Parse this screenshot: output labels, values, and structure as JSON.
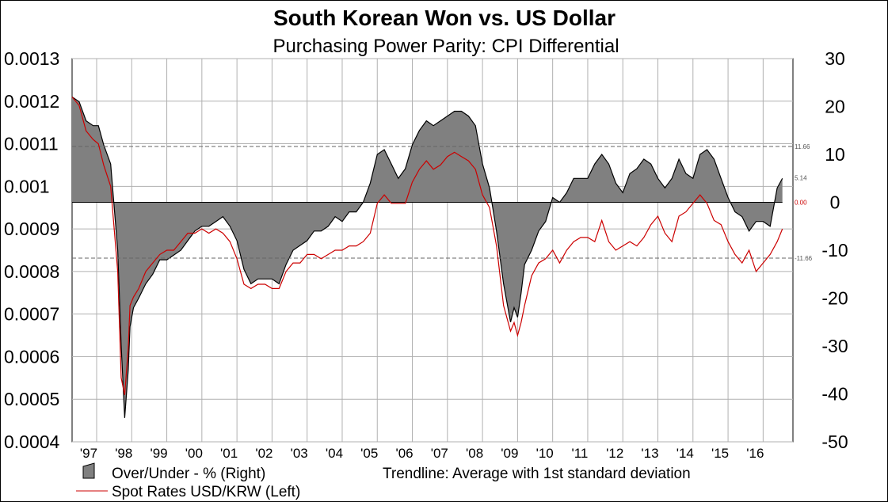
{
  "chart_data": {
    "type": "area",
    "title": "South Korean Won vs. US Dollar",
    "subtitle": "Purchasing Power Parity: CPI Differential",
    "left_axis": {
      "ticks": [
        "0.0013",
        "0.0012",
        "0.0011",
        "0.001",
        "0.0009",
        "0.0008",
        "0.0007",
        "0.0006",
        "0.0005",
        "0.0004"
      ],
      "ylim": [
        0.0004,
        0.0013
      ]
    },
    "right_axis": {
      "ticks": [
        "30",
        "20",
        "10",
        "0",
        "-10",
        "-20",
        "-30",
        "-40",
        "-50"
      ],
      "ylim": [
        -50,
        30
      ]
    },
    "x_ticks": [
      "'97",
      "'98",
      "'99",
      "'00",
      "'01",
      "'02",
      "'03",
      "'04",
      "'05",
      "'06",
      "'07",
      "'08",
      "'09",
      "'10",
      "'11",
      "'12",
      "'13",
      "'14",
      "'15",
      "'16"
    ],
    "x_tick_positions": [
      1997,
      1998,
      1999,
      2000,
      2001,
      2002,
      2003,
      2004,
      2005,
      2006,
      2007,
      2008,
      2009,
      2010,
      2011,
      2012,
      2013,
      2014,
      2015,
      2016
    ],
    "xlim": [
      1996.3,
      2016.85
    ],
    "reference_lines": [
      {
        "label": "11.66",
        "value": 11.66,
        "axis": "right"
      },
      {
        "label": "-11.66",
        "value": -11.66,
        "axis": "right"
      }
    ],
    "end_labels": [
      {
        "label": "5.14",
        "value": 5.14,
        "axis": "right",
        "color": "#555555"
      },
      {
        "label": "0.00",
        "value": 0.0,
        "axis": "right",
        "color": "#cc0000"
      }
    ],
    "series": [
      {
        "name": "Over/Under - %  (Right)",
        "axis": "right",
        "kind": "area",
        "color": "#808080",
        "x": [
          1996.3,
          1996.5,
          1996.7,
          1996.9,
          1997.05,
          1997.2,
          1997.4,
          1997.6,
          1997.7,
          1997.8,
          1997.9,
          1997.95,
          1998.05,
          1998.2,
          1998.4,
          1998.6,
          1998.8,
          1999.0,
          1999.2,
          1999.4,
          1999.6,
          1999.8,
          2000.0,
          2000.2,
          2000.4,
          2000.6,
          2000.8,
          2001.0,
          2001.2,
          2001.4,
          2001.6,
          2001.8,
          2002.0,
          2002.2,
          2002.4,
          2002.6,
          2002.8,
          2003.0,
          2003.2,
          2003.4,
          2003.6,
          2003.8,
          2004.0,
          2004.2,
          2004.4,
          2004.6,
          2004.8,
          2005.0,
          2005.2,
          2005.4,
          2005.6,
          2005.8,
          2006.0,
          2006.2,
          2006.4,
          2006.6,
          2006.8,
          2007.0,
          2007.2,
          2007.4,
          2007.6,
          2007.8,
          2008.0,
          2008.2,
          2008.4,
          2008.6,
          2008.8,
          2008.9,
          2009.0,
          2009.1,
          2009.2,
          2009.4,
          2009.6,
          2009.8,
          2010.0,
          2010.2,
          2010.4,
          2010.6,
          2010.8,
          2011.0,
          2011.2,
          2011.4,
          2011.6,
          2011.8,
          2012.0,
          2012.2,
          2012.4,
          2012.6,
          2012.8,
          2013.0,
          2013.2,
          2013.4,
          2013.6,
          2013.8,
          2014.0,
          2014.2,
          2014.4,
          2014.6,
          2014.8,
          2015.0,
          2015.2,
          2015.4,
          2015.6,
          2015.8,
          2016.0,
          2016.2,
          2016.4,
          2016.55
        ],
        "values": [
          22,
          21,
          17,
          16,
          16,
          12,
          8,
          -10,
          -30,
          -45,
          -35,
          -26,
          -22,
          -20,
          -17,
          -15,
          -12,
          -12,
          -11,
          -10,
          -8,
          -6,
          -5,
          -5,
          -4,
          -3,
          -5,
          -8,
          -14,
          -17,
          -16,
          -16,
          -16,
          -17,
          -13,
          -10,
          -9,
          -8,
          -6,
          -6,
          -5,
          -3,
          -4,
          -2,
          -2,
          0,
          4,
          10,
          11,
          8,
          5,
          7,
          12,
          15,
          17,
          16,
          17,
          18,
          19,
          19,
          18,
          16,
          8,
          3,
          -6,
          -17,
          -25,
          -22,
          -24,
          -19,
          -13,
          -10,
          -6,
          -4,
          1,
          0,
          2,
          5,
          5,
          5,
          8,
          10,
          8,
          4,
          2,
          6,
          7,
          9,
          8,
          5,
          3,
          5,
          9,
          6,
          5,
          10,
          11,
          9,
          5,
          1,
          -2,
          -3,
          -6,
          -4,
          -4,
          -5,
          3,
          5
        ]
      },
      {
        "name": "Spot Rates USD/KRW  (Left)",
        "axis": "left",
        "kind": "line",
        "color": "#cc0000",
        "x": [
          1996.3,
          1996.5,
          1996.7,
          1996.9,
          1997.05,
          1997.2,
          1997.4,
          1997.6,
          1997.7,
          1997.8,
          1997.9,
          1997.95,
          1998.05,
          1998.2,
          1998.4,
          1998.6,
          1998.8,
          1999.0,
          1999.2,
          1999.4,
          1999.6,
          1999.8,
          2000.0,
          2000.2,
          2000.4,
          2000.6,
          2000.8,
          2001.0,
          2001.2,
          2001.4,
          2001.6,
          2001.8,
          2002.0,
          2002.2,
          2002.4,
          2002.6,
          2002.8,
          2003.0,
          2003.2,
          2003.4,
          2003.6,
          2003.8,
          2004.0,
          2004.2,
          2004.4,
          2004.6,
          2004.8,
          2005.0,
          2005.2,
          2005.4,
          2005.6,
          2005.8,
          2006.0,
          2006.2,
          2006.4,
          2006.6,
          2006.8,
          2007.0,
          2007.2,
          2007.4,
          2007.6,
          2007.8,
          2008.0,
          2008.2,
          2008.4,
          2008.6,
          2008.8,
          2008.9,
          2009.0,
          2009.1,
          2009.2,
          2009.4,
          2009.6,
          2009.8,
          2010.0,
          2010.2,
          2010.4,
          2010.6,
          2010.8,
          2011.0,
          2011.2,
          2011.4,
          2011.6,
          2011.8,
          2012.0,
          2012.2,
          2012.4,
          2012.6,
          2012.8,
          2013.0,
          2013.2,
          2013.4,
          2013.6,
          2013.8,
          2014.0,
          2014.2,
          2014.4,
          2014.6,
          2014.8,
          2015.0,
          2015.2,
          2015.4,
          2015.6,
          2015.8,
          2016.0,
          2016.2,
          2016.4,
          2016.55
        ],
        "values": [
          0.00121,
          0.00119,
          0.00113,
          0.00111,
          0.0011,
          0.00105,
          0.001,
          0.0008,
          0.00055,
          0.00051,
          0.00062,
          0.00072,
          0.00074,
          0.00076,
          0.0008,
          0.00082,
          0.00084,
          0.00085,
          0.00085,
          0.00087,
          0.00089,
          0.00089,
          0.0009,
          0.00089,
          0.0009,
          0.00089,
          0.00087,
          0.00083,
          0.00077,
          0.00076,
          0.00077,
          0.00077,
          0.00076,
          0.00076,
          0.0008,
          0.00082,
          0.00082,
          0.00084,
          0.00084,
          0.00083,
          0.00084,
          0.00085,
          0.00085,
          0.00086,
          0.00086,
          0.00087,
          0.00089,
          0.00096,
          0.00098,
          0.00096,
          0.00096,
          0.00096,
          0.00101,
          0.00104,
          0.00106,
          0.00104,
          0.00105,
          0.00107,
          0.00108,
          0.00107,
          0.00106,
          0.00104,
          0.00098,
          0.00095,
          0.00086,
          0.00072,
          0.00066,
          0.00068,
          0.00065,
          0.00068,
          0.00072,
          0.00079,
          0.00082,
          0.00083,
          0.00085,
          0.00082,
          0.00085,
          0.00087,
          0.00088,
          0.00088,
          0.00087,
          0.00092,
          0.00087,
          0.00085,
          0.00086,
          0.00087,
          0.00086,
          0.00088,
          0.00091,
          0.00093,
          0.00089,
          0.00087,
          0.00093,
          0.00094,
          0.00096,
          0.00098,
          0.00096,
          0.00092,
          0.00091,
          0.00087,
          0.00084,
          0.00082,
          0.00085,
          0.0008,
          0.00082,
          0.00084,
          0.00087,
          0.0009
        ]
      }
    ],
    "legend": {
      "items": [
        {
          "label": "Over/Under - %  (Right)",
          "swatch": "area"
        },
        {
          "label": "Trendline: Average with 1st standard deviation",
          "swatch": "none"
        },
        {
          "label": "Spot Rates USD/KRW  (Left)",
          "swatch": "line"
        }
      ],
      "placement": "bottom"
    },
    "grid": true
  }
}
